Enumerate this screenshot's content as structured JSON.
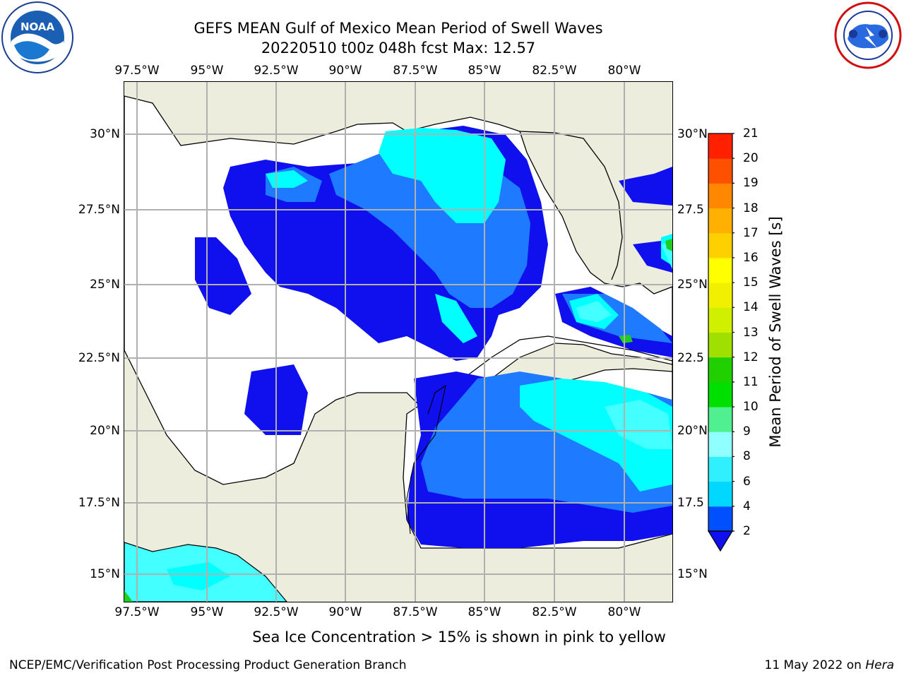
{
  "title_line1": "GEFS MEAN Gulf of Mexico Mean Period of Swell Waves",
  "title_line2": "20220510 t00z 048h fcst   Max: 12.57",
  "lon_labels": [
    "97.5°W",
    "95°W",
    "92.5°W",
    "90°W",
    "87.5°W",
    "85°W",
    "82.5°W",
    "80°W"
  ],
  "lat_labels_left": [
    "30°N",
    "27.5°N",
    "25°N",
    "22.5°N",
    "20°N",
    "17.5°N",
    "15°N"
  ],
  "lat_labels_right": [
    "30°N",
    "27.5",
    "25°N",
    "22.5",
    "20°N",
    "17.5",
    "15°N"
  ],
  "colorbar": {
    "label": "Mean Period of Swell Waves [s]",
    "levels": [
      "2",
      "4",
      "6",
      "8",
      "9",
      "10",
      "11",
      "12",
      "13",
      "14",
      "15",
      "16",
      "17",
      "18",
      "19",
      "20",
      "21"
    ],
    "colors": [
      "#0050ff",
      "#00d8ff",
      "#30f0ff",
      "#90ffff",
      "#50f090",
      "#00e000",
      "#20d000",
      "#a0e000",
      "#d0f000",
      "#f0f000",
      "#ffff00",
      "#ffd000",
      "#ffb000",
      "#ff8800",
      "#ff5000",
      "#ff2000"
    ],
    "under_color": "#1010ee"
  },
  "legend_colors": {
    "land": "#ededde",
    "ocean_low": "#1010ee",
    "ocean_2_4": "#1e7bff",
    "ocean_4_6": "#00ffff",
    "ocean_6_8": "#44ffff",
    "grid": "#b0b0b0"
  },
  "ice_note": "Sea Ice Concentration > 15% is shown in pink to yellow",
  "credit_left": "NCEP/EMC/Verification Post Processing Product Generation Branch",
  "credit_date": "11 May 2022 on ",
  "credit_host": "Hera",
  "logos": {
    "left": "NOAA",
    "right": "NATIONAL WEATHER SERVICE"
  }
}
